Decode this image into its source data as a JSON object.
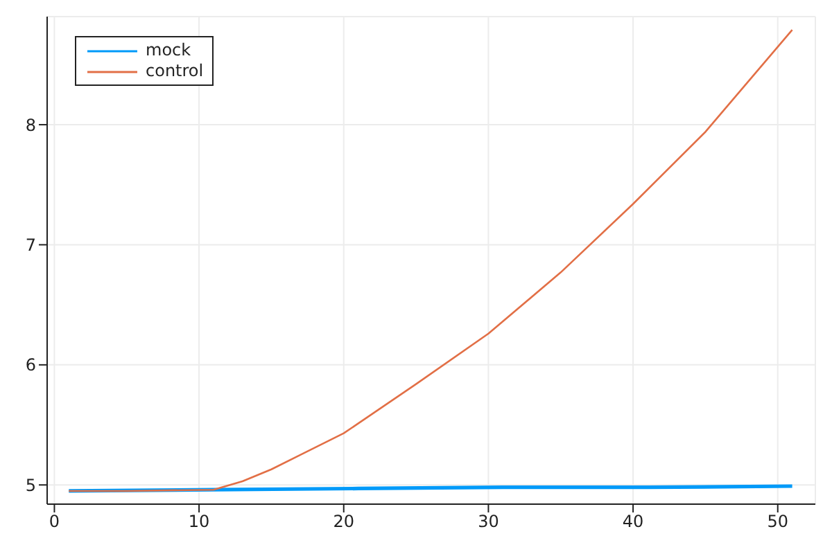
{
  "chart_data": {
    "type": "line",
    "xlim": [
      -0.5,
      52.6
    ],
    "ylim": [
      4.84,
      8.9
    ],
    "xticks": [
      0,
      10,
      20,
      30,
      40,
      50
    ],
    "yticks": [
      5,
      6,
      7,
      8
    ],
    "grid": true,
    "legend": "top left",
    "marker": "none",
    "line_style": "solid",
    "series": [
      {
        "name": "mock",
        "color": "#009af9",
        "x": [
          1,
          11,
          21,
          31,
          41,
          51
        ],
        "values": [
          4.95,
          4.96,
          4.97,
          4.98,
          4.98,
          4.99
        ]
      },
      {
        "name": "control",
        "color": "#e26f46",
        "x": [
          1,
          5,
          11,
          13,
          15,
          17,
          20,
          25,
          30,
          35,
          40,
          45,
          51
        ],
        "values": [
          4.95,
          4.95,
          4.96,
          5.03,
          5.13,
          5.25,
          5.43,
          5.84,
          6.26,
          6.77,
          7.34,
          7.94,
          8.79
        ]
      }
    ]
  }
}
